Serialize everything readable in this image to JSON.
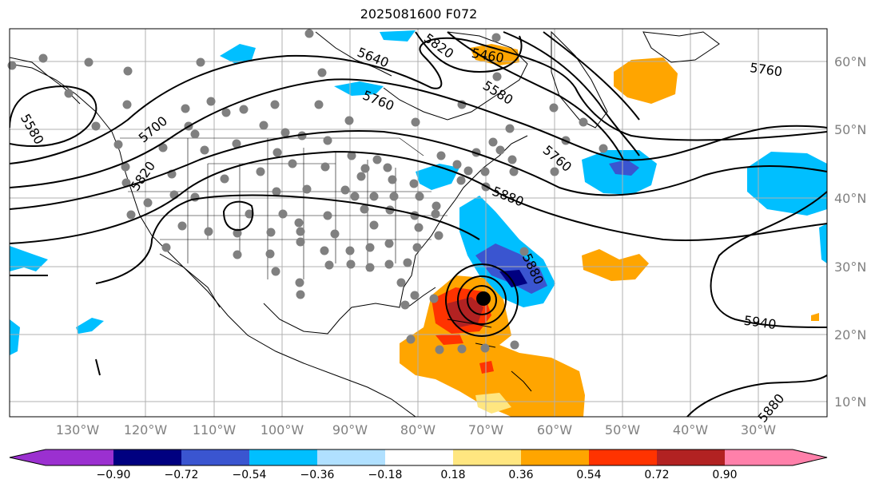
{
  "title": "2025081600 F072",
  "latitude_labels": [
    "60°N",
    "50°N",
    "40°N",
    "30°N",
    "20°N",
    "10°N"
  ],
  "longitude_labels": [
    "130°W",
    "120°W",
    "110°W",
    "100°W",
    "90°W",
    "80°W",
    "70°W",
    "60°W",
    "50°W",
    "40°W",
    "30°W"
  ],
  "contour_labels": [
    "5580",
    "5700",
    "5820",
    "5640",
    "5760",
    "5820",
    "5460",
    "5580",
    "5760",
    "5760",
    "5880",
    "5880",
    "5940",
    "5880"
  ],
  "colorbar": {
    "ticks": [
      "−0.90",
      "−0.72",
      "−0.54",
      "−0.36",
      "−0.18",
      "0.18",
      "0.36",
      "0.54",
      "0.72",
      "0.90"
    ],
    "colors": [
      "#9b30d0",
      "#000080",
      "#3a55d0",
      "#00bfff",
      "#b0e0ff",
      "#ffffff",
      "#ffe680",
      "#ffa500",
      "#ff3300",
      "#b22222",
      "#ff80aa"
    ]
  }
}
